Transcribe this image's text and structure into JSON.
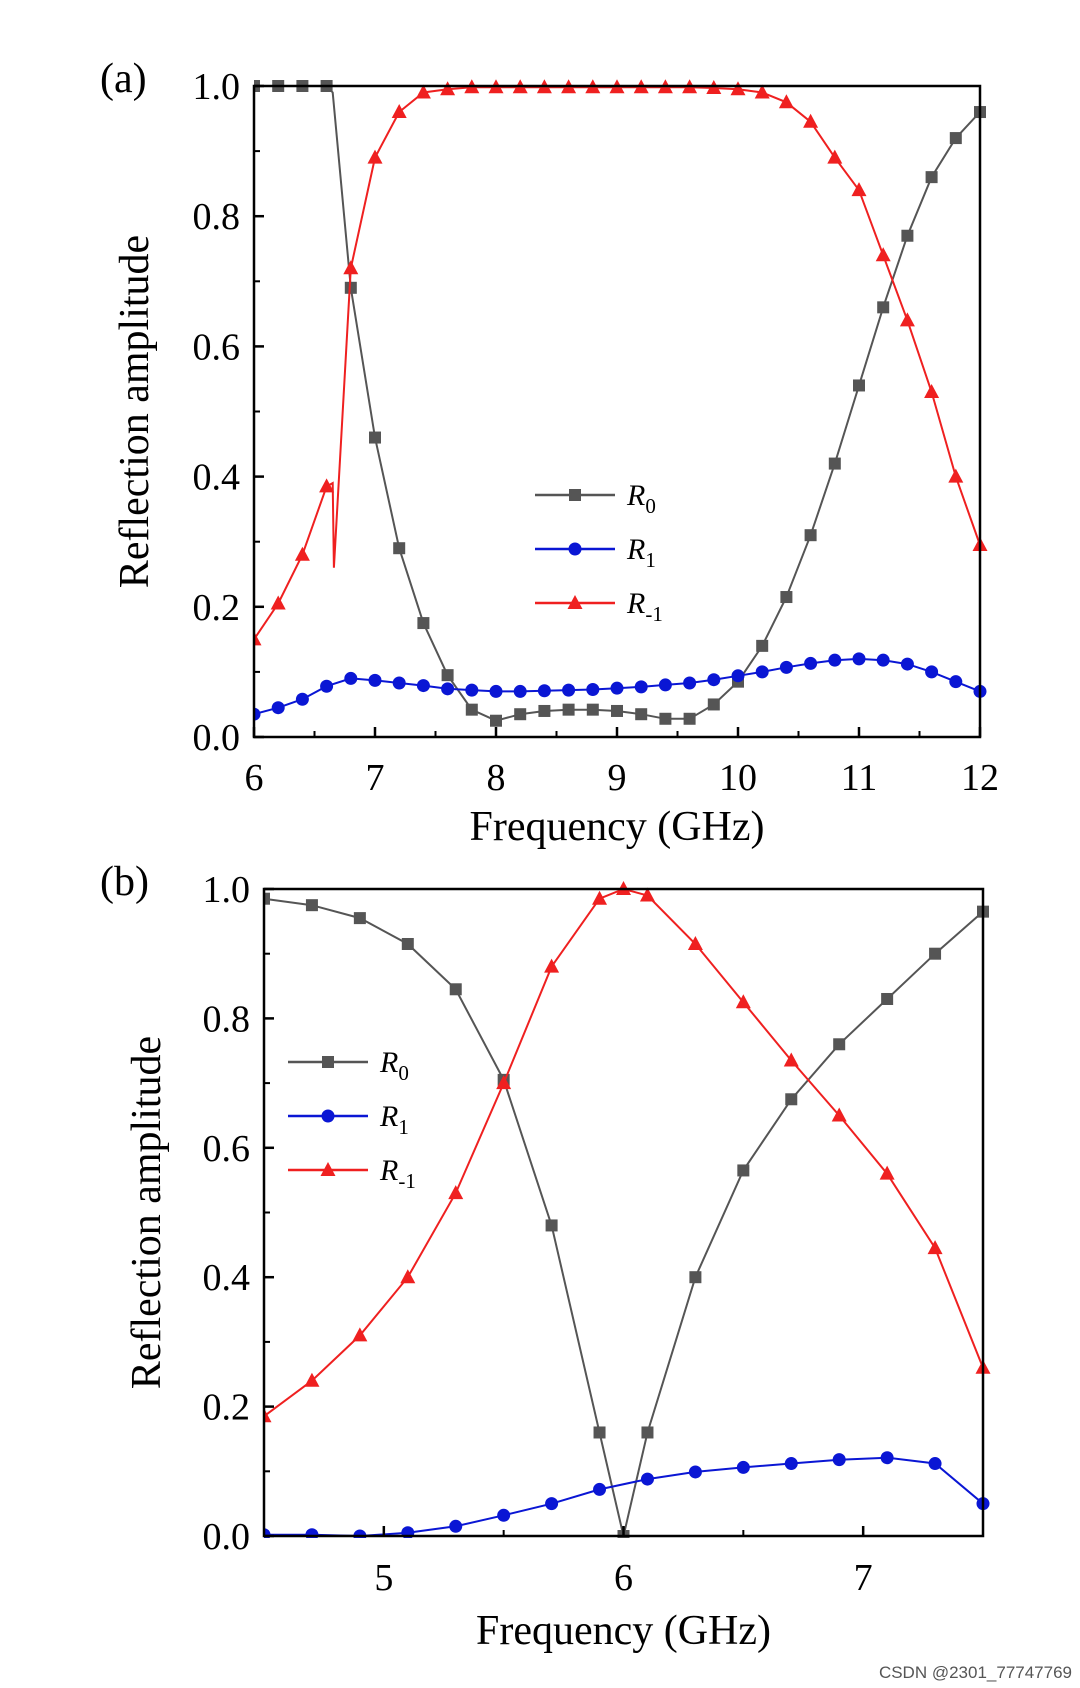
{
  "watermark": "CSDN @2301_77747769",
  "colors": {
    "R0": "#555555",
    "R1": "#0a16d4",
    "Rm1": "#ef2020"
  },
  "chart_data": [
    {
      "type": "line",
      "panel": "(a)",
      "xlabel": "Frequency (GHz)",
      "ylabel": "Reflection amplitude",
      "xlim": [
        6,
        12
      ],
      "ylim": [
        0,
        1
      ],
      "xticks": [
        "6",
        "7",
        "8",
        "9",
        "10",
        "11",
        "12"
      ],
      "yticks": [
        "0.0",
        "0.2",
        "0.4",
        "0.6",
        "0.8",
        "1.0"
      ],
      "legend_position": "center-right",
      "series": [
        {
          "name": "R0",
          "label_main": "R",
          "label_sub": "0",
          "marker": "square",
          "x": [
            6.0,
            6.2,
            6.4,
            6.6,
            6.65,
            6.8,
            7.0,
            7.2,
            7.4,
            7.6,
            7.8,
            8.0,
            8.2,
            8.4,
            8.6,
            8.8,
            9.0,
            9.2,
            9.4,
            9.6,
            9.8,
            10.0,
            10.2,
            10.4,
            10.6,
            10.8,
            11.0,
            11.2,
            11.4,
            11.6,
            11.8,
            12.0
          ],
          "y": [
            1.0,
            1.0,
            1.0,
            1.0,
            0.99,
            0.69,
            0.46,
            0.29,
            0.175,
            0.095,
            0.042,
            0.025,
            0.035,
            0.04,
            0.042,
            0.042,
            0.04,
            0.035,
            0.028,
            0.028,
            0.05,
            0.085,
            0.14,
            0.215,
            0.31,
            0.42,
            0.54,
            0.66,
            0.77,
            0.86,
            0.92,
            0.96
          ]
        },
        {
          "name": "R1",
          "label_main": "R",
          "label_sub": "1",
          "marker": "circle",
          "x": [
            6.0,
            6.2,
            6.4,
            6.6,
            6.8,
            7.0,
            7.2,
            7.4,
            7.6,
            7.8,
            8.0,
            8.2,
            8.4,
            8.6,
            8.8,
            9.0,
            9.2,
            9.4,
            9.6,
            9.8,
            10.0,
            10.2,
            10.4,
            10.6,
            10.8,
            11.0,
            11.2,
            11.4,
            11.6,
            11.8,
            12.0
          ],
          "y": [
            0.035,
            0.045,
            0.058,
            0.078,
            0.09,
            0.087,
            0.083,
            0.079,
            0.074,
            0.072,
            0.07,
            0.07,
            0.071,
            0.072,
            0.073,
            0.075,
            0.077,
            0.08,
            0.083,
            0.088,
            0.094,
            0.1,
            0.107,
            0.113,
            0.118,
            0.12,
            0.118,
            0.112,
            0.1,
            0.085,
            0.07
          ]
        },
        {
          "name": "R-1",
          "label_main": "R",
          "label_sub": "-1",
          "marker": "triangle",
          "x": [
            6.0,
            6.2,
            6.4,
            6.6,
            6.65,
            6.66,
            6.8,
            7.0,
            7.2,
            7.4,
            7.6,
            7.8,
            8.0,
            8.2,
            8.4,
            8.6,
            8.8,
            9.0,
            9.2,
            9.4,
            9.6,
            9.8,
            10.0,
            10.2,
            10.4,
            10.6,
            10.8,
            11.0,
            11.2,
            11.4,
            11.6,
            11.8,
            12.0
          ],
          "y": [
            0.15,
            0.205,
            0.28,
            0.385,
            0.39,
            0.26,
            0.72,
            0.89,
            0.96,
            0.99,
            0.995,
            0.998,
            0.998,
            0.998,
            0.998,
            0.998,
            0.998,
            0.998,
            0.998,
            0.998,
            0.998,
            0.997,
            0.995,
            0.99,
            0.975,
            0.945,
            0.89,
            0.84,
            0.74,
            0.64,
            0.53,
            0.4,
            0.295
          ]
        }
      ]
    },
    {
      "type": "line",
      "panel": "(b)",
      "xlabel": "Frequency (GHz)",
      "ylabel": "Reflection amplitude",
      "xlim": [
        4.5,
        7.5
      ],
      "ylim": [
        0,
        1
      ],
      "xticks": [
        "5",
        "6",
        "7"
      ],
      "yticks": [
        "0.0",
        "0.2",
        "0.4",
        "0.6",
        "0.8",
        "1.0"
      ],
      "legend_position": "center-left",
      "series": [
        {
          "name": "R0",
          "label_main": "R",
          "label_sub": "0",
          "marker": "square",
          "x": [
            4.5,
            4.7,
            4.9,
            5.1,
            5.3,
            5.5,
            5.7,
            5.9,
            6.0,
            6.1,
            6.3,
            6.5,
            6.7,
            6.9,
            7.1,
            7.3,
            7.5
          ],
          "y": [
            0.985,
            0.975,
            0.955,
            0.915,
            0.845,
            0.705,
            0.48,
            0.16,
            0.0,
            0.16,
            0.4,
            0.565,
            0.675,
            0.76,
            0.83,
            0.9,
            0.965
          ]
        },
        {
          "name": "R1",
          "label_main": "R",
          "label_sub": "1",
          "marker": "circle",
          "x": [
            4.5,
            4.7,
            4.9,
            5.1,
            5.3,
            5.5,
            5.7,
            5.9,
            6.1,
            6.3,
            6.5,
            6.7,
            6.9,
            7.1,
            7.3,
            7.5
          ],
          "y": [
            0.002,
            0.002,
            0.0,
            0.005,
            0.015,
            0.032,
            0.05,
            0.072,
            0.088,
            0.099,
            0.106,
            0.112,
            0.118,
            0.121,
            0.112,
            0.05
          ]
        },
        {
          "name": "R-1",
          "label_main": "R",
          "label_sub": "-1",
          "marker": "triangle",
          "x": [
            4.5,
            4.7,
            4.9,
            5.1,
            5.3,
            5.5,
            5.7,
            5.9,
            6.0,
            6.1,
            6.3,
            6.5,
            6.7,
            6.9,
            7.1,
            7.3,
            7.5
          ],
          "y": [
            0.185,
            0.24,
            0.31,
            0.4,
            0.53,
            0.7,
            0.88,
            0.985,
            1.0,
            0.99,
            0.915,
            0.825,
            0.735,
            0.65,
            0.56,
            0.445,
            0.26
          ]
        }
      ]
    }
  ]
}
